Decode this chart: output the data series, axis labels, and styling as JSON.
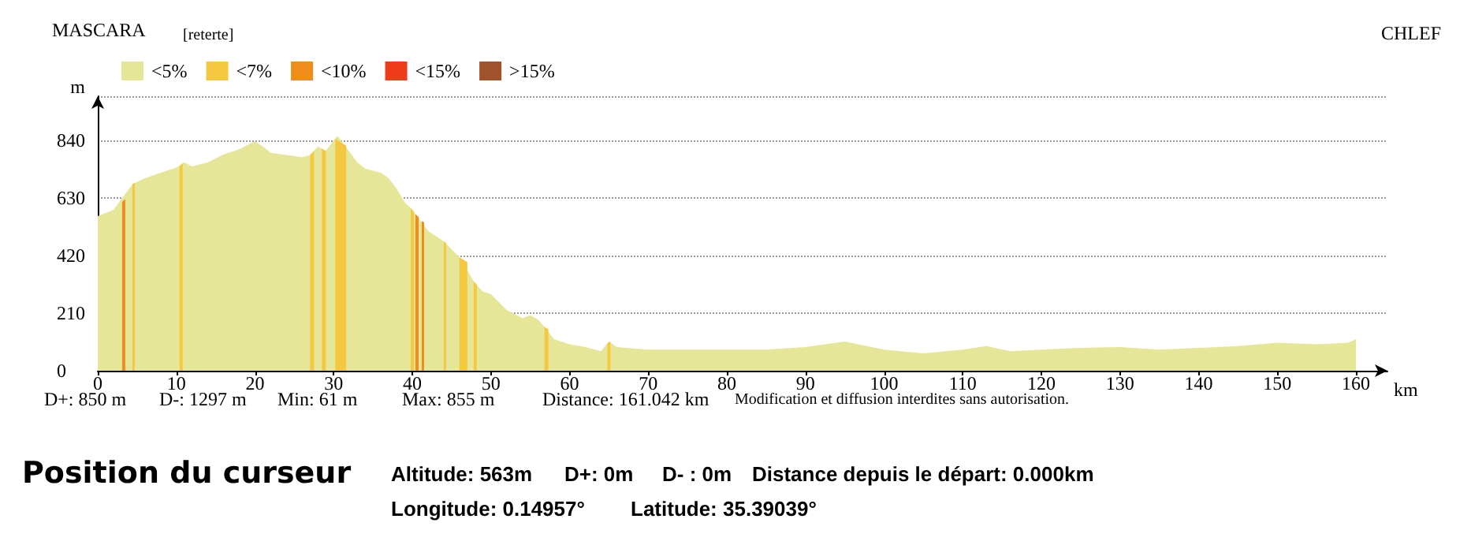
{
  "chart_data": {
    "type": "area",
    "xlabel": "km",
    "ylabel": "m",
    "xlim": [
      0,
      164
    ],
    "xticks": [
      0,
      10,
      20,
      30,
      40,
      50,
      60,
      70,
      80,
      90,
      100,
      110,
      120,
      130,
      140,
      150,
      160
    ],
    "ylim": [
      0,
      1000
    ],
    "stacked": false,
    "yticks": [
      0,
      210,
      420,
      630,
      840
    ],
    "grid": "y",
    "legend": "top left",
    "marker": "none",
    "series": [
      {
        "name": "<5%",
        "color": "#e6e699",
        "x": [
          0,
          2,
          3,
          4.5,
          6,
          8,
          10,
          11,
          12,
          14,
          16,
          18,
          20,
          21,
          22,
          24,
          26,
          27,
          28,
          29,
          30,
          30.5,
          32,
          33,
          34,
          36,
          37,
          38,
          39,
          40,
          41,
          42,
          44,
          46,
          48,
          49,
          50,
          52,
          54,
          55,
          56,
          57,
          58,
          60,
          62,
          64,
          65,
          66,
          68,
          70,
          75,
          80,
          85,
          90,
          95,
          100,
          105,
          110,
          113,
          116,
          120,
          125,
          130,
          135,
          140,
          145,
          150,
          155,
          159,
          160
        ],
        "values": [
          563,
          586,
          625,
          682,
          701,
          721,
          740,
          759,
          744,
          759,
          788,
          807,
          836,
          817,
          794,
          786,
          778,
          786,
          817,
          801,
          840,
          855,
          798,
          759,
          736,
          721,
          701,
          663,
          615,
          586,
          548,
          509,
          471,
          413,
          317,
          288,
          279,
          221,
          192,
          202,
          186,
          154,
          115,
          96,
          86,
          71,
          106,
          86,
          81,
          77,
          77,
          77,
          77,
          86,
          106,
          77,
          63,
          77,
          90,
          71,
          77,
          83,
          86,
          77,
          83,
          90,
          102,
          96,
          102,
          115
        ]
      },
      {
        "name": "<7%",
        "color": "#f5c842",
        "x": [
          4.4,
          4.7,
          null,
          10.4,
          10.8,
          null,
          27.0,
          27.5,
          null,
          28.5,
          29.0,
          null,
          30.2,
          31.6,
          null,
          39.8,
          40.2,
          null,
          44.0,
          44.3,
          null,
          46.0,
          47.0,
          null,
          47.8,
          48.2,
          null,
          56.8,
          57.3,
          null,
          64.8,
          65.2
        ],
        "values": [
          680,
          684,
          null,
          745,
          755,
          null,
          786,
          800,
          null,
          809,
          801,
          null,
          845,
          820,
          null,
          592,
          580,
          null,
          471,
          465,
          null,
          413,
          395,
          null,
          325,
          315,
          null,
          160,
          150,
          null,
          100,
          106
        ]
      },
      {
        "name": "<10%",
        "color": "#f08c1a",
        "x": [
          3.1,
          3.5,
          null,
          40.4,
          40.8,
          null,
          41.2,
          41.5
        ],
        "values": [
          615,
          625,
          null,
          570,
          560,
          null,
          545,
          540
        ]
      },
      {
        "name": "<15%",
        "color": "#ee3b1a"
      },
      {
        "name": ">15%",
        "color": "#a0522d"
      }
    ],
    "annotations": [
      "MASCARA",
      "[reterte]",
      "CHLEF",
      "D+: 850 m",
      "D-: 1297 m",
      "Min: 61 m",
      "Max: 855 m",
      "Distance: 161.042 km",
      "Modification et diffusion interdites sans autorisation.",
      "Position du curseur",
      "Altitude: 563m",
      "D+: 0m",
      "D- : 0m",
      "Distance depuis le départ: 0.000km",
      "Longitude: 0.14957°",
      "Latitude: 35.39039°"
    ]
  }
}
